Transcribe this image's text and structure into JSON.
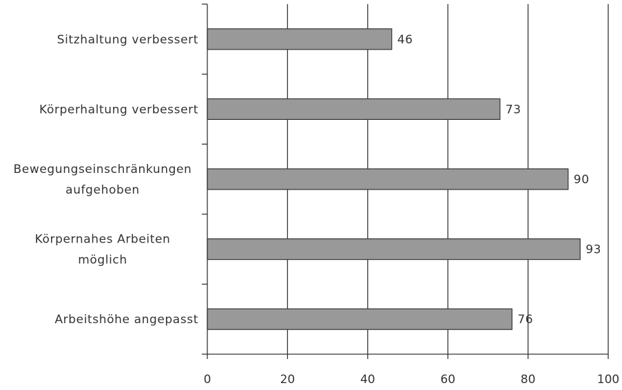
{
  "chart_data": {
    "type": "bar",
    "orientation": "horizontal",
    "categories": [
      [
        "Sitzhaltung verbessert"
      ],
      [
        "Körperhaltung verbessert"
      ],
      [
        "Bewegungseinschränkungen",
        "aufgehoben"
      ],
      [
        "Körpernahes Arbeiten",
        "möglich"
      ],
      [
        "Arbeitshöhe angepasst"
      ]
    ],
    "values": [
      46,
      73,
      90,
      93,
      76
    ],
    "xlim": [
      0,
      100
    ],
    "xticks": [
      0,
      20,
      40,
      60,
      80,
      100
    ],
    "grid": true,
    "legend": "none",
    "colors": {
      "bar": "#999999",
      "bar_edge": "#333333",
      "axis": "#333333",
      "grid": "#333333"
    }
  }
}
